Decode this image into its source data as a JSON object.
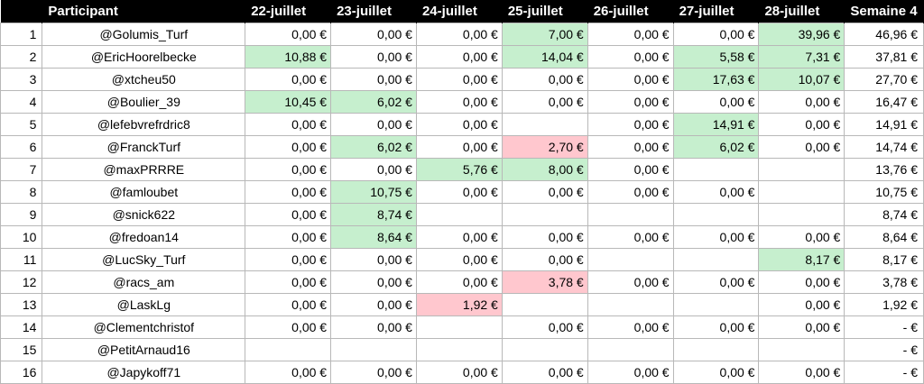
{
  "headers": [
    "",
    "Participant",
    "22-juillet",
    "23-juillet",
    "24-juillet",
    "25-juillet",
    "26-juillet",
    "27-juillet",
    "28-juillet",
    "Semaine 4"
  ],
  "colors": {
    "header_bg": "#000000",
    "gain_bg": "#c6efce",
    "loss_bg": "#ffc7ce"
  },
  "rows": [
    {
      "rank": "1",
      "name": "@Golumis_Turf",
      "cells": [
        {
          "v": "0,00 €",
          "s": ""
        },
        {
          "v": "0,00 €",
          "s": ""
        },
        {
          "v": "0,00 €",
          "s": ""
        },
        {
          "v": "7,00 €",
          "s": "pos"
        },
        {
          "v": "0,00 €",
          "s": ""
        },
        {
          "v": "0,00 €",
          "s": ""
        },
        {
          "v": "39,96 €",
          "s": "pos"
        }
      ],
      "total": "46,96 €"
    },
    {
      "rank": "2",
      "name": "@EricHoorelbecke",
      "cells": [
        {
          "v": "10,88 €",
          "s": "pos"
        },
        {
          "v": "0,00 €",
          "s": ""
        },
        {
          "v": "0,00 €",
          "s": ""
        },
        {
          "v": "14,04 €",
          "s": "pos"
        },
        {
          "v": "0,00 €",
          "s": ""
        },
        {
          "v": "5,58 €",
          "s": "pos"
        },
        {
          "v": "7,31 €",
          "s": "pos"
        }
      ],
      "total": "37,81 €"
    },
    {
      "rank": "3",
      "name": "@xtcheu50",
      "cells": [
        {
          "v": "0,00 €",
          "s": ""
        },
        {
          "v": "0,00 €",
          "s": ""
        },
        {
          "v": "0,00 €",
          "s": ""
        },
        {
          "v": "0,00 €",
          "s": ""
        },
        {
          "v": "0,00 €",
          "s": ""
        },
        {
          "v": "17,63 €",
          "s": "pos"
        },
        {
          "v": "10,07 €",
          "s": "pos"
        }
      ],
      "total": "27,70 €"
    },
    {
      "rank": "4",
      "name": "@Boulier_39",
      "cells": [
        {
          "v": "10,45 €",
          "s": "pos"
        },
        {
          "v": "6,02 €",
          "s": "pos"
        },
        {
          "v": "0,00 €",
          "s": ""
        },
        {
          "v": "0,00 €",
          "s": ""
        },
        {
          "v": "0,00 €",
          "s": ""
        },
        {
          "v": "0,00 €",
          "s": ""
        },
        {
          "v": "0,00 €",
          "s": ""
        }
      ],
      "total": "16,47 €"
    },
    {
      "rank": "5",
      "name": "@lefebvrefrdric8",
      "cells": [
        {
          "v": "0,00 €",
          "s": ""
        },
        {
          "v": "0,00 €",
          "s": ""
        },
        {
          "v": "0,00 €",
          "s": ""
        },
        {
          "v": "",
          "s": ""
        },
        {
          "v": "0,00 €",
          "s": ""
        },
        {
          "v": "14,91 €",
          "s": "pos"
        },
        {
          "v": "0,00 €",
          "s": ""
        }
      ],
      "total": "14,91 €"
    },
    {
      "rank": "6",
      "name": "@FranckTurf",
      "cells": [
        {
          "v": "0,00 €",
          "s": ""
        },
        {
          "v": "6,02 €",
          "s": "pos"
        },
        {
          "v": "0,00 €",
          "s": ""
        },
        {
          "v": "2,70 €",
          "s": "neg"
        },
        {
          "v": "0,00 €",
          "s": ""
        },
        {
          "v": "6,02 €",
          "s": "pos"
        },
        {
          "v": "0,00 €",
          "s": ""
        }
      ],
      "total": "14,74 €"
    },
    {
      "rank": "7",
      "name": "@maxPRRRE",
      "cells": [
        {
          "v": "0,00 €",
          "s": ""
        },
        {
          "v": "0,00 €",
          "s": ""
        },
        {
          "v": "5,76 €",
          "s": "pos"
        },
        {
          "v": "8,00 €",
          "s": "pos"
        },
        {
          "v": "0,00 €",
          "s": ""
        },
        {
          "v": "",
          "s": ""
        },
        {
          "v": "",
          "s": ""
        }
      ],
      "total": "13,76 €"
    },
    {
      "rank": "8",
      "name": "@famloubet",
      "cells": [
        {
          "v": "0,00 €",
          "s": ""
        },
        {
          "v": "10,75 €",
          "s": "pos"
        },
        {
          "v": "0,00 €",
          "s": ""
        },
        {
          "v": "0,00 €",
          "s": ""
        },
        {
          "v": "0,00 €",
          "s": ""
        },
        {
          "v": "0,00 €",
          "s": ""
        },
        {
          "v": "",
          "s": ""
        }
      ],
      "total": "10,75 €"
    },
    {
      "rank": "9",
      "name": "@snick622",
      "cells": [
        {
          "v": "0,00 €",
          "s": ""
        },
        {
          "v": "8,74 €",
          "s": "pos"
        },
        {
          "v": "",
          "s": ""
        },
        {
          "v": "",
          "s": ""
        },
        {
          "v": "",
          "s": ""
        },
        {
          "v": "",
          "s": ""
        },
        {
          "v": "",
          "s": ""
        }
      ],
      "total": "8,74 €"
    },
    {
      "rank": "10",
      "name": "@fredoan14",
      "cells": [
        {
          "v": "0,00 €",
          "s": ""
        },
        {
          "v": "8,64 €",
          "s": "pos"
        },
        {
          "v": "0,00 €",
          "s": ""
        },
        {
          "v": "0,00 €",
          "s": ""
        },
        {
          "v": "0,00 €",
          "s": ""
        },
        {
          "v": "0,00 €",
          "s": ""
        },
        {
          "v": "0,00 €",
          "s": ""
        }
      ],
      "total": "8,64 €"
    },
    {
      "rank": "11",
      "name": "@LucSky_Turf",
      "cells": [
        {
          "v": "0,00 €",
          "s": ""
        },
        {
          "v": "0,00 €",
          "s": ""
        },
        {
          "v": "0,00 €",
          "s": ""
        },
        {
          "v": "0,00 €",
          "s": ""
        },
        {
          "v": "",
          "s": ""
        },
        {
          "v": "",
          "s": ""
        },
        {
          "v": "8,17 €",
          "s": "pos"
        }
      ],
      "total": "8,17 €"
    },
    {
      "rank": "12",
      "name": "@racs_am",
      "cells": [
        {
          "v": "0,00 €",
          "s": ""
        },
        {
          "v": "0,00 €",
          "s": ""
        },
        {
          "v": "0,00 €",
          "s": ""
        },
        {
          "v": "3,78 €",
          "s": "neg"
        },
        {
          "v": "0,00 €",
          "s": ""
        },
        {
          "v": "0,00 €",
          "s": ""
        },
        {
          "v": "0,00 €",
          "s": ""
        }
      ],
      "total": "3,78 €"
    },
    {
      "rank": "13",
      "name": "@LaskLg",
      "cells": [
        {
          "v": "0,00 €",
          "s": ""
        },
        {
          "v": "0,00 €",
          "s": ""
        },
        {
          "v": "1,92 €",
          "s": "neg"
        },
        {
          "v": "",
          "s": ""
        },
        {
          "v": "",
          "s": ""
        },
        {
          "v": "",
          "s": ""
        },
        {
          "v": "0,00 €",
          "s": ""
        }
      ],
      "total": "1,92 €"
    },
    {
      "rank": "14",
      "name": "@Clementchristof",
      "cells": [
        {
          "v": "0,00 €",
          "s": ""
        },
        {
          "v": "0,00 €",
          "s": ""
        },
        {
          "v": "",
          "s": ""
        },
        {
          "v": "0,00 €",
          "s": ""
        },
        {
          "v": "0,00 €",
          "s": ""
        },
        {
          "v": "0,00 €",
          "s": ""
        },
        {
          "v": "0,00 €",
          "s": ""
        }
      ],
      "total": "-   €"
    },
    {
      "rank": "15",
      "name": "@PetitArnaud16",
      "cells": [
        {
          "v": "",
          "s": ""
        },
        {
          "v": "",
          "s": ""
        },
        {
          "v": "",
          "s": ""
        },
        {
          "v": "",
          "s": ""
        },
        {
          "v": "",
          "s": ""
        },
        {
          "v": "",
          "s": ""
        },
        {
          "v": "",
          "s": ""
        }
      ],
      "total": "-   €"
    },
    {
      "rank": "16",
      "name": "@Japykoff71",
      "cells": [
        {
          "v": "0,00 €",
          "s": ""
        },
        {
          "v": "0,00 €",
          "s": ""
        },
        {
          "v": "0,00 €",
          "s": ""
        },
        {
          "v": "0,00 €",
          "s": ""
        },
        {
          "v": "0,00 €",
          "s": ""
        },
        {
          "v": "0,00 €",
          "s": ""
        },
        {
          "v": "0,00 €",
          "s": ""
        }
      ],
      "total": "-   €"
    }
  ]
}
